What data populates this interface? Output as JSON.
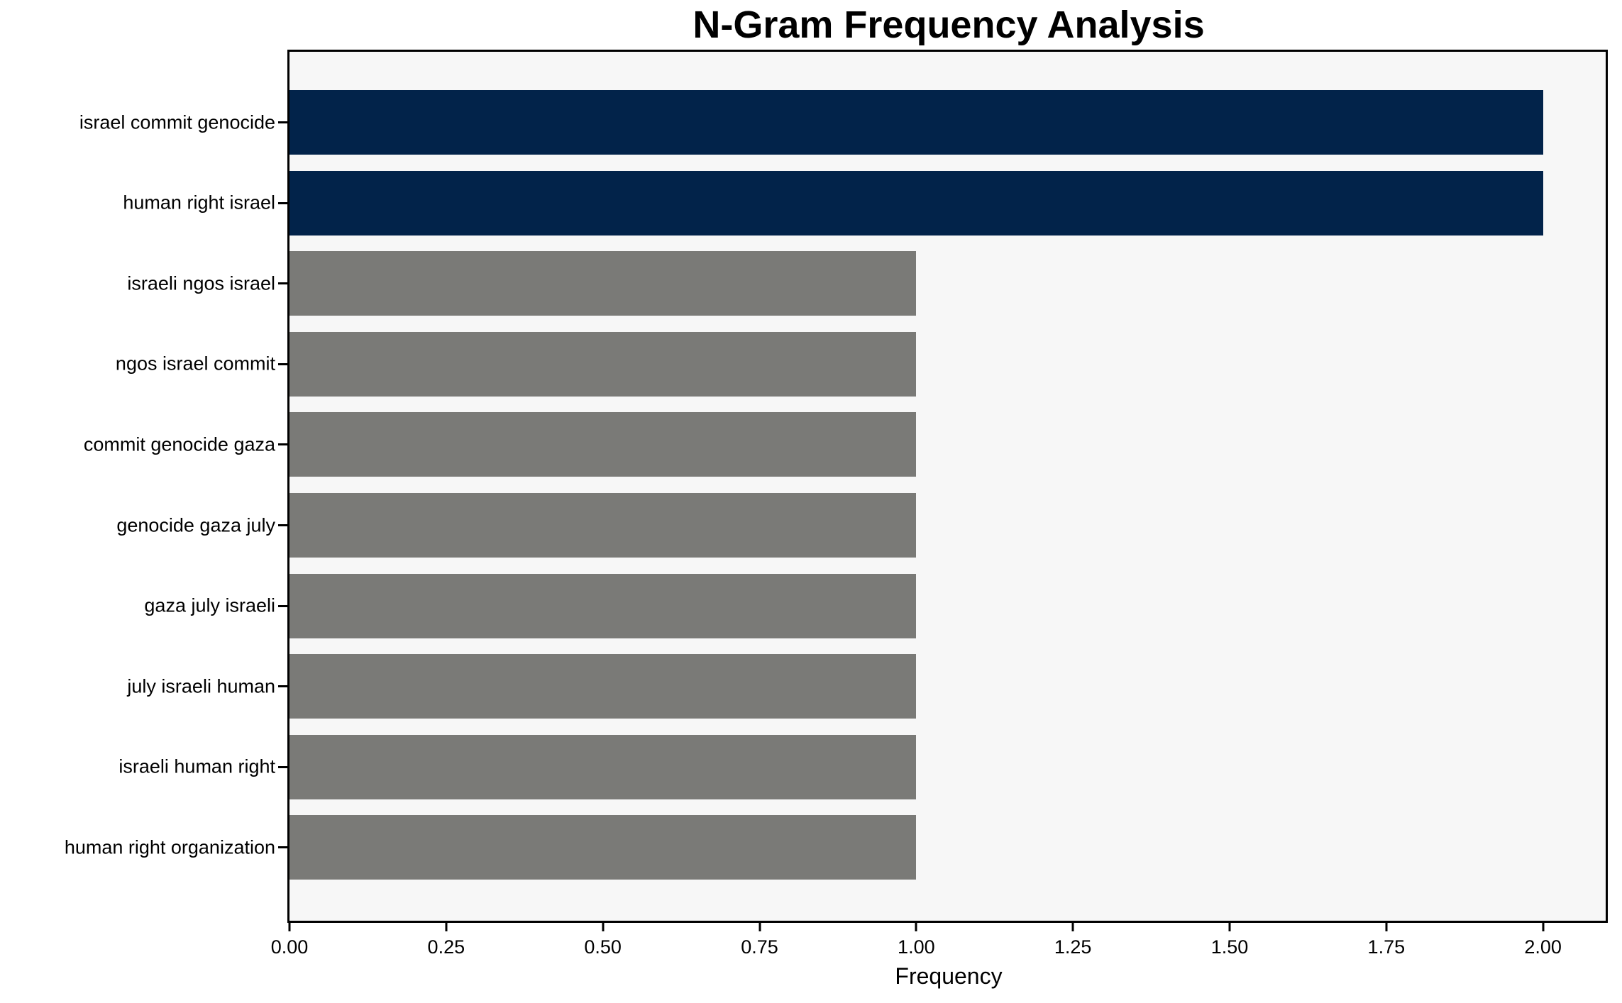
{
  "title": "N-Gram Frequency Analysis",
  "chart_data": {
    "type": "bar",
    "orientation": "horizontal",
    "title": "N-Gram Frequency Analysis",
    "xlabel": "Frequency",
    "categories": [
      "israel commit genocide",
      "human right israel",
      "israeli ngos israel",
      "ngos israel commit",
      "commit genocide gaza",
      "genocide gaza july",
      "gaza july israeli",
      "july israeli human",
      "israeli human right",
      "human right organization"
    ],
    "values": [
      2,
      2,
      1,
      1,
      1,
      1,
      1,
      1,
      1,
      1
    ],
    "bar_colors": [
      "#02234a",
      "#02234a",
      "#7a7a77",
      "#7a7a77",
      "#7a7a77",
      "#7a7a77",
      "#7a7a77",
      "#7a7a77",
      "#7a7a77",
      "#7a7a77"
    ],
    "xlim": [
      0,
      2.1
    ],
    "xticks": [
      {
        "value": 0.0,
        "label": "0.00"
      },
      {
        "value": 0.25,
        "label": "0.25"
      },
      {
        "value": 0.5,
        "label": "0.50"
      },
      {
        "value": 0.75,
        "label": "0.75"
      },
      {
        "value": 1.0,
        "label": "1.00"
      },
      {
        "value": 1.25,
        "label": "1.25"
      },
      {
        "value": 1.5,
        "label": "1.50"
      },
      {
        "value": 1.75,
        "label": "1.75"
      },
      {
        "value": 2.0,
        "label": "2.00"
      }
    ],
    "colors": {
      "highlight": "#02234a",
      "default": "#7a7a77",
      "plot_background": "#f7f7f7",
      "figure_background": "#ffffff",
      "spine": "#000000"
    },
    "grid": false,
    "legend": null
  }
}
